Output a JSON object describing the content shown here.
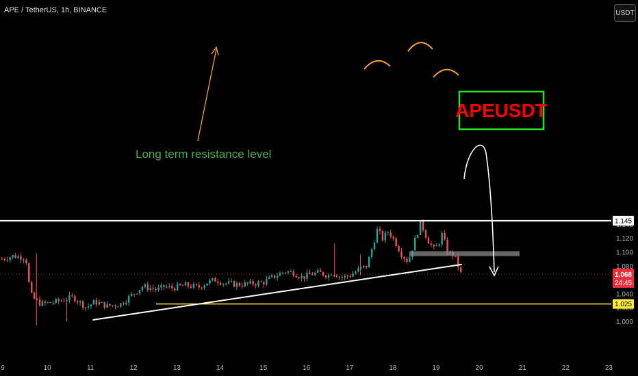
{
  "header": {
    "title": "APE / TetherUS, 1h, BINANCE",
    "currency_button": "USDT"
  },
  "colors": {
    "up": "#26a69a",
    "down": "#ef5350",
    "background": "#000000",
    "resistance": "#ffffff",
    "support": "#ffeb3b",
    "arrow": "#f5a23a",
    "annotation_text": "#4caf50",
    "label_box": "#ff0000"
  },
  "price_badges": {
    "resistance": "1.145",
    "support": "1.025",
    "current": "1.068",
    "countdown": "24:45"
  },
  "annotations": {
    "resistance_label": "Long term resistance level",
    "ticker_box": "APEUSDT"
  },
  "chart_data": {
    "type": "candlestick",
    "title": "APE / TetherUS, 1h, BINANCE",
    "y_axis": {
      "ticks": [
        "1.140",
        "1.120",
        "1.100",
        "1.080",
        "1.060",
        "1.040",
        "1.020",
        "1.000"
      ],
      "range": [
        0.99,
        1.152
      ]
    },
    "x_axis": {
      "ticks": [
        "9",
        "10",
        "11",
        "12",
        "13",
        "14",
        "15",
        "16",
        "17",
        "18",
        "19",
        "20",
        "21",
        "22",
        "23"
      ]
    },
    "grid": false,
    "current_price": 1.068,
    "resistance_level": 1.145,
    "support_level": 1.025,
    "trendline": {
      "from": [
        11.05,
        1.002
      ],
      "to": [
        19.6,
        1.082
      ]
    },
    "support_zone": [
      1.094,
      1.101
    ],
    "price_path": [
      [
        8.95,
        1.09
      ],
      [
        9.2,
        1.094
      ],
      [
        9.5,
        1.092
      ],
      [
        9.55,
        1.07
      ],
      [
        9.6,
        1.04
      ],
      [
        9.7,
        1.032
      ],
      [
        9.85,
        1.025
      ],
      [
        10.2,
        1.028
      ],
      [
        10.6,
        1.035
      ],
      [
        10.9,
        1.02
      ],
      [
        11.1,
        1.028
      ],
      [
        11.4,
        1.022
      ],
      [
        11.7,
        1.025
      ],
      [
        12.0,
        1.04
      ],
      [
        12.2,
        1.05
      ],
      [
        12.4,
        1.048
      ],
      [
        12.55,
        1.045
      ],
      [
        12.7,
        1.05
      ],
      [
        12.9,
        1.048
      ],
      [
        13.2,
        1.052
      ],
      [
        13.5,
        1.049
      ],
      [
        13.7,
        1.056
      ],
      [
        13.9,
        1.06
      ],
      [
        14.1,
        1.055
      ],
      [
        14.4,
        1.053
      ],
      [
        14.7,
        1.054
      ],
      [
        15.0,
        1.056
      ],
      [
        15.2,
        1.063
      ],
      [
        15.5,
        1.072
      ],
      [
        15.7,
        1.07
      ],
      [
        15.9,
        1.063
      ],
      [
        16.1,
        1.068
      ],
      [
        16.3,
        1.07
      ],
      [
        16.5,
        1.066
      ],
      [
        16.6,
        1.071
      ],
      [
        16.8,
        1.063
      ],
      [
        17.0,
        1.066
      ],
      [
        17.2,
        1.074
      ],
      [
        17.4,
        1.08
      ],
      [
        17.55,
        1.112
      ],
      [
        17.65,
        1.134
      ],
      [
        17.75,
        1.118
      ],
      [
        17.9,
        1.13
      ],
      [
        18.05,
        1.115
      ],
      [
        18.2,
        1.097
      ],
      [
        18.35,
        1.086
      ],
      [
        18.5,
        1.115
      ],
      [
        18.65,
        1.142
      ],
      [
        18.8,
        1.118
      ],
      [
        18.95,
        1.104
      ],
      [
        19.05,
        1.11
      ],
      [
        19.15,
        1.127
      ],
      [
        19.25,
        1.1
      ],
      [
        19.4,
        1.096
      ],
      [
        19.5,
        1.083
      ],
      [
        19.55,
        1.07
      ],
      [
        19.6,
        1.068
      ]
    ]
  }
}
